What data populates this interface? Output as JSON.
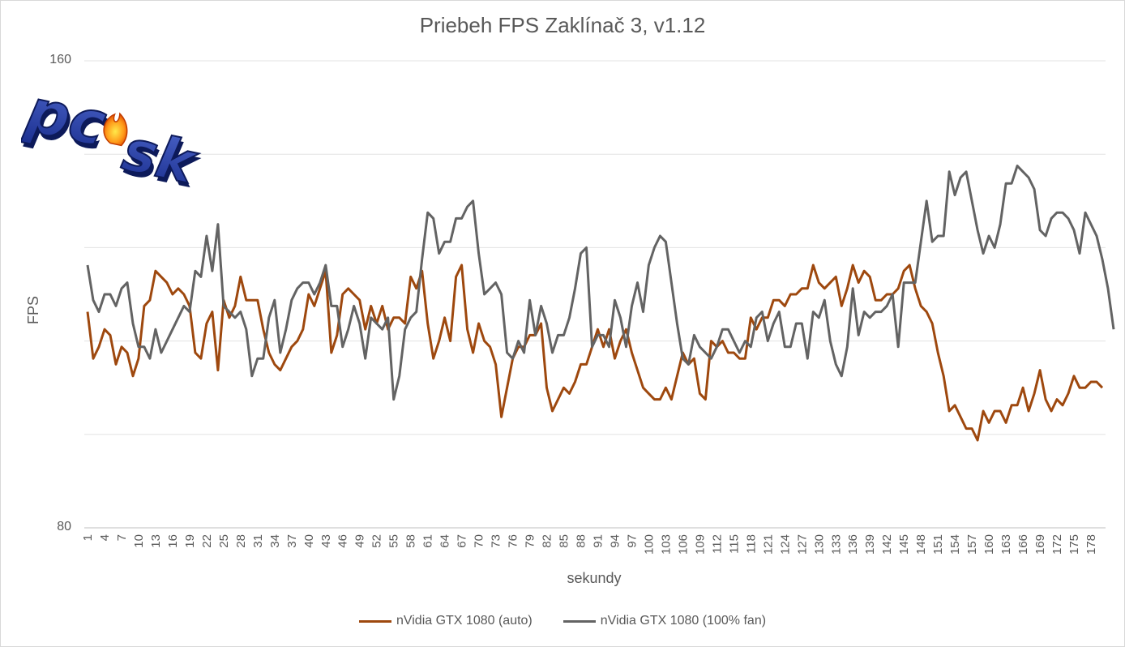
{
  "chart_data": {
    "type": "line",
    "title": "Priebeh FPS Zaklínač 3, v1.12",
    "xlabel": "sekundy",
    "ylabel": "FPS",
    "ylim": [
      80,
      160
    ],
    "y_tick_labels": [
      "160",
      "80"
    ],
    "x_tick_labels": [
      "1",
      "4",
      "7",
      "10",
      "13",
      "16",
      "19",
      "22",
      "25",
      "28",
      "31",
      "34",
      "37",
      "40",
      "43",
      "46",
      "49",
      "52",
      "55",
      "58",
      "61",
      "64",
      "67",
      "70",
      "73",
      "76",
      "79",
      "82",
      "85",
      "88",
      "91",
      "94",
      "97",
      "100",
      "103",
      "106",
      "109",
      "112",
      "115",
      "118",
      "121",
      "124",
      "127",
      "130",
      "133",
      "136",
      "139",
      "142",
      "145",
      "148",
      "151",
      "154",
      "157",
      "160",
      "163",
      "166",
      "169",
      "172",
      "175",
      "178"
    ],
    "x_tick_step": 3,
    "grid": true,
    "legend_position": "bottom",
    "series": [
      {
        "name": "nVidia GTX 1080 (auto)",
        "color": "#9e480e",
        "values": [
          117,
          109,
          111,
          114,
          113,
          108,
          111,
          110,
          106,
          109,
          118,
          119,
          124,
          123,
          122,
          120,
          121,
          120,
          118,
          110,
          109,
          115,
          117,
          107,
          119,
          116,
          118,
          123,
          119,
          119,
          119,
          114,
          110,
          108,
          107,
          109,
          111,
          112,
          114,
          120,
          118,
          121,
          124,
          110,
          113,
          120,
          121,
          120,
          119,
          114,
          118,
          115,
          118,
          114,
          116,
          116,
          115,
          123,
          121,
          124,
          115,
          109,
          112,
          116,
          112,
          123,
          125,
          114,
          110,
          115,
          112,
          111,
          108,
          99,
          104,
          109,
          111,
          111,
          113,
          113,
          115,
          104,
          100,
          102,
          104,
          103,
          105,
          108,
          108,
          111,
          114,
          111,
          114,
          109,
          112,
          114,
          110,
          107,
          104,
          103,
          102,
          102,
          104,
          102,
          106,
          110,
          108,
          109,
          103,
          102,
          112,
          111,
          112,
          110,
          110,
          109,
          109,
          116,
          114,
          116,
          116,
          119,
          119,
          118,
          120,
          120,
          121,
          121,
          125,
          122,
          121,
          122,
          123,
          118,
          121,
          125,
          122,
          124,
          123,
          119,
          119,
          120,
          120,
          121,
          124,
          125,
          121,
          118,
          117,
          115,
          110,
          106,
          100,
          101,
          99,
          97,
          97,
          95,
          100,
          98,
          100,
          100,
          98,
          101,
          101,
          104,
          100,
          103,
          107,
          102,
          100,
          102,
          101,
          103,
          106,
          104,
          104,
          105,
          105,
          104
        ]
      },
      {
        "name": "nVidia GTX 1080 (100% fan)",
        "color": "#636363",
        "values": [
          125,
          119,
          117,
          120,
          120,
          118,
          121,
          122,
          115,
          111,
          111,
          109,
          114,
          110,
          112,
          114,
          116,
          118,
          117,
          124,
          123,
          130,
          124,
          132,
          118,
          117,
          116,
          117,
          114,
          106,
          109,
          109,
          116,
          119,
          110,
          114,
          119,
          121,
          122,
          122,
          120,
          122,
          125,
          118,
          118,
          111,
          114,
          118,
          115,
          109,
          116,
          115,
          114,
          116,
          102,
          106,
          114,
          116,
          117,
          126,
          134,
          133,
          127,
          129,
          129,
          133,
          133,
          135,
          136,
          127,
          120,
          121,
          122,
          120,
          110,
          109,
          112,
          110,
          119,
          113,
          118,
          115,
          110,
          113,
          113,
          116,
          121,
          127,
          128,
          111,
          113,
          113,
          111,
          119,
          116,
          111,
          118,
          122,
          117,
          125,
          128,
          130,
          129,
          122,
          115,
          109,
          108,
          113,
          111,
          110,
          109,
          111,
          114,
          114,
          112,
          110,
          112,
          111,
          116,
          117,
          112,
          115,
          117,
          111,
          111,
          115,
          115,
          109,
          117,
          116,
          119,
          112,
          108,
          106,
          111,
          121,
          113,
          117,
          116,
          117,
          117,
          118,
          120,
          111,
          122,
          122,
          122,
          129,
          136,
          129,
          130,
          130,
          141,
          137,
          140,
          141,
          136,
          131,
          127,
          130,
          128,
          132,
          139,
          139,
          142,
          141,
          140,
          138,
          131,
          130,
          133,
          134,
          134,
          133,
          131,
          127,
          134,
          132,
          130,
          126,
          121,
          114
        ]
      }
    ]
  },
  "logo": {
    "text": "pcsk"
  }
}
